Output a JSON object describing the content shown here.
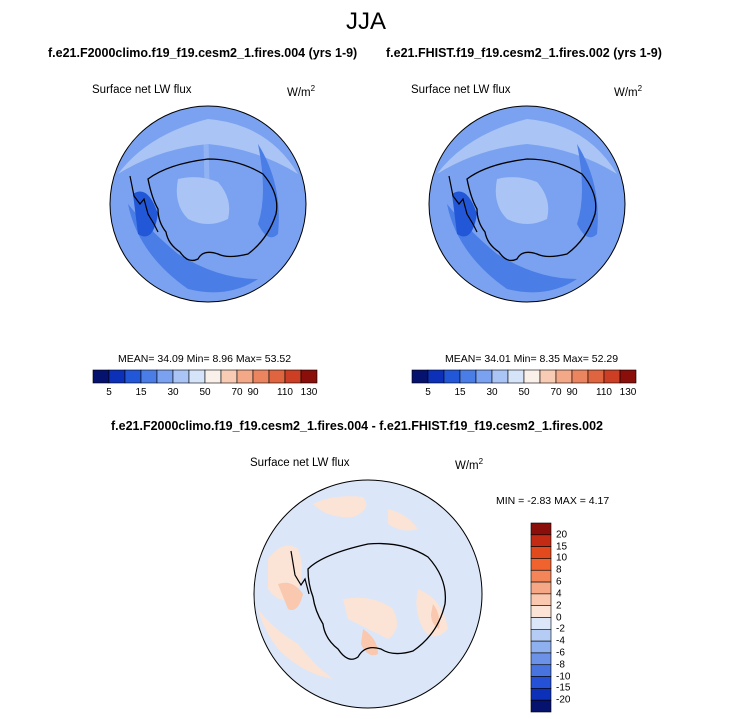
{
  "figure": {
    "title": "JJA",
    "panel_left": {
      "case": "f.e21.F2000climo.f19_f19.cesm2_1.fires.004 (yrs 1-9)",
      "variable": "Surface net LW flux",
      "units_base": "W/m",
      "units_sup": "2",
      "stats": "MEAN=  34.09  Min=   8.96  Max=  53.52"
    },
    "panel_right": {
      "case": "f.e21.FHIST.f19_f19.cesm2_1.fires.002 (yrs 1-9)",
      "variable": "Surface net LW flux",
      "units_base": "W/m",
      "units_sup": "2",
      "stats": "MEAN=  34.01  Min=   8.35  Max=  52.29"
    },
    "panel_diff": {
      "case": "f.e21.F2000climo.f19_f19.cesm2_1.fires.004 - f.e21.FHIST.f19_f19.cesm2_1.fires.002",
      "variable": "Surface net LW flux",
      "units_base": "W/m",
      "units_sup": "2",
      "stats": "MIN =  -2.83 MAX =   4.17"
    },
    "colorbar_abs": {
      "labels": [
        "5",
        "15",
        "30",
        "50",
        "70",
        "90",
        "110",
        "130"
      ],
      "colors": [
        "#05126e",
        "#0c30b8",
        "#2258d8",
        "#4a7ee6",
        "#7aa2f0",
        "#a9c4f5",
        "#d6e4f9",
        "#faf0ea",
        "#f8cbb5",
        "#f3a888",
        "#ea8560",
        "#df6440",
        "#cc3f24",
        "#8a0f0a"
      ]
    },
    "colorbar_diff": {
      "labels": [
        "20",
        "15",
        "10",
        "8",
        "6",
        "4",
        "2",
        "0",
        "-2",
        "-4",
        "-6",
        "-8",
        "-10",
        "-15",
        "-20"
      ],
      "colors": [
        "#8a0f0a",
        "#c42b14",
        "#e2491d",
        "#f0622e",
        "#f48558",
        "#f6a886",
        "#f9c8ae",
        "#fbe4d6",
        "#dbe6f8",
        "#b5cdf4",
        "#8fb0ee",
        "#6b92e7",
        "#4874e0",
        "#2451d6",
        "#0c30b8",
        "#05126e"
      ]
    }
  }
}
